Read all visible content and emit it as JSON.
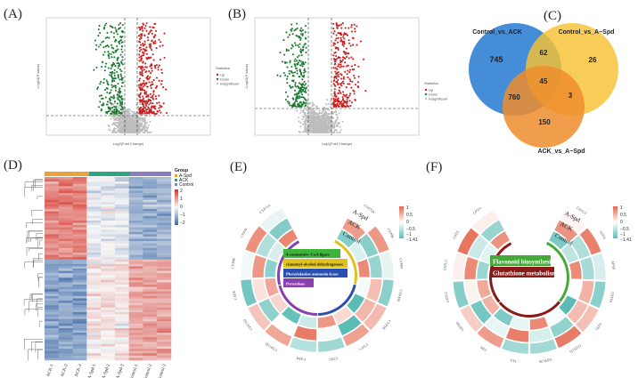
{
  "panels": {
    "A": "(A)",
    "B": "(B)",
    "C": "(C)",
    "D": "(D)",
    "E": "(E)",
    "F": "(F)"
  },
  "volcano": {
    "xlabel": "Log2(Fold Change)",
    "ylabel": "-Log10(P value)",
    "legend_title": "Statistics",
    "legend_items": [
      "Up",
      "Down",
      "Insignificant"
    ],
    "colors": {
      "up": "#cc1f1f",
      "down": "#1f7a35",
      "ns": "#bdbdbd"
    }
  },
  "venn": {
    "labels": {
      "a": "Control_vs_ACK",
      "b": "Control_vs_A−Spd",
      "c": "ACK_vs_A−Spd"
    },
    "counts": {
      "a_only": "745",
      "ab": "62",
      "b_only": "26",
      "ac": "760",
      "abc": "45",
      "bc": "3",
      "c_only": "150"
    },
    "colors": {
      "a": "#3b87d4",
      "b": "#f6c232",
      "c": "#ef8d2d"
    }
  },
  "heatmap": {
    "legend_title": "Group",
    "groups": [
      "A-Spd",
      "ACK",
      "Control"
    ],
    "group_colors": [
      "#e8a33a",
      "#2aa683",
      "#8a7dbe"
    ],
    "scale_ticks": [
      "2",
      "1",
      "0",
      "−1",
      "−2"
    ],
    "samples": [
      "ACK-1",
      "ACK-2",
      "ACK-3",
      "A-Spd-1",
      "A-Spd-2",
      "A-Spd-3",
      "Control-1",
      "Control-2",
      "Control-3"
    ]
  },
  "circos_e": {
    "tracks": [
      "A-Spd",
      "ACK",
      "Control"
    ],
    "genes": [
      "CYP73A",
      "CYP98",
      "CYP84",
      "CYP450",
      "CYP1B",
      "CYP71",
      "CCR1",
      "CAD4",
      "CYP71D",
      "CYP71D",
      "CAD6",
      "CYP98",
      "CYP78",
      "CYP71A"
    ],
    "pathways": [
      {
        "label": "4-coumarate--CoA ligase",
        "color": "#3db43a",
        "text": "#111"
      },
      {
        "label": "cinnamyl-alcohol dehydrogenase",
        "color": "#e0c21c",
        "text": "#111"
      },
      {
        "label": "Phenylalanine ammonia-lyase",
        "color": "#2a4fb0",
        "text": "#fff"
      },
      {
        "label": "Peroxidase",
        "color": "#8a3fae",
        "text": "#fff"
      }
    ],
    "scale_ticks": [
      "1",
      "0.5",
      "0",
      "−0.5",
      "−1",
      "−1.41"
    ]
  },
  "circos_f": {
    "tracks": [
      "A-Spd",
      "ACK",
      "Control"
    ],
    "genes": [
      "GSTU7",
      "GST4",
      "APX6",
      "GSTF6",
      "GST1",
      "GSTU25",
      "GSTU26",
      "FLS",
      "CHS",
      "GSTF8",
      "GSTL2",
      "GSTU1",
      "GSTZ",
      "GPX3"
    ],
    "pathways": [
      {
        "label": "Flavonoid biosynthesis",
        "color": "#45a83a"
      },
      {
        "label": "Glutathione metabolism",
        "color": "#8a1a1a"
      }
    ],
    "scale_ticks": [
      "1",
      "0.5",
      "0",
      "−0.5",
      "−1",
      "−1.41"
    ]
  }
}
